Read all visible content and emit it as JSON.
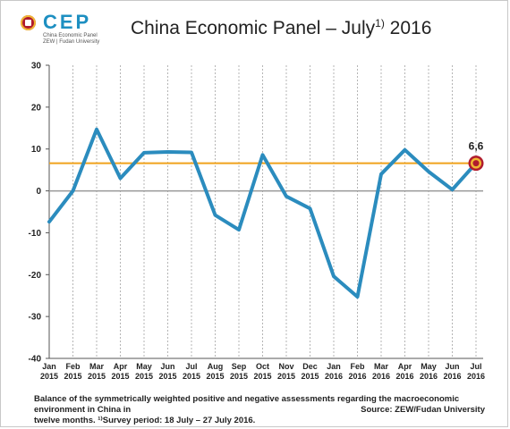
{
  "logo": {
    "word": "CEP",
    "line1": "China Economic Panel",
    "line2": "ZEW | Fudan University"
  },
  "title": {
    "text": "China Economic Panel – July",
    "sup": "1)",
    "year": " 2016"
  },
  "footnote": {
    "line1": "Balance of the symmetrically weighted positive and negative assessments regarding the macroeconomic environment  in China in",
    "line2": "twelve months. ¹⁾Survey period: 18 July – 27 July 2016."
  },
  "source": "Source: ZEW/Fudan University",
  "colors": {
    "line": "#2b8cbe",
    "reference": "#f0a21c",
    "zero": "#999999",
    "marker_ring": "#b01c2e",
    "marker_fill": "#f1b733"
  },
  "chart_data": {
    "type": "line",
    "categories": [
      [
        "Jan",
        "2015"
      ],
      [
        "Feb",
        "2015"
      ],
      [
        "Mar",
        "2015"
      ],
      [
        "Apr",
        "2015"
      ],
      [
        "May",
        "2015"
      ],
      [
        "Jun",
        "2015"
      ],
      [
        "Jul",
        "2015"
      ],
      [
        "Aug",
        "2015"
      ],
      [
        "Sep",
        "2015"
      ],
      [
        "Oct",
        "2015"
      ],
      [
        "Nov",
        "2015"
      ],
      [
        "Dec",
        "2015"
      ],
      [
        "Jan",
        "2016"
      ],
      [
        "Feb",
        "2016"
      ],
      [
        "Mar",
        "2016"
      ],
      [
        "Apr",
        "2016"
      ],
      [
        "May",
        "2016"
      ],
      [
        "Jun",
        "2016"
      ],
      [
        "Jul",
        "2016"
      ]
    ],
    "values": [
      -7.4,
      0.0,
      14.7,
      3.0,
      9.1,
      9.3,
      9.2,
      -5.8,
      -9.3,
      8.6,
      -1.3,
      -4.2,
      -20.4,
      -25.3,
      4.0,
      9.8,
      4.6,
      0.3,
      6.6
    ],
    "ylim": [
      -40,
      30
    ],
    "yticks": [
      30,
      20,
      10,
      0,
      -10,
      -20,
      -30,
      -40
    ],
    "reference_line": 6.6,
    "last_value_label": "6,6",
    "grid": "vertical dashed"
  }
}
